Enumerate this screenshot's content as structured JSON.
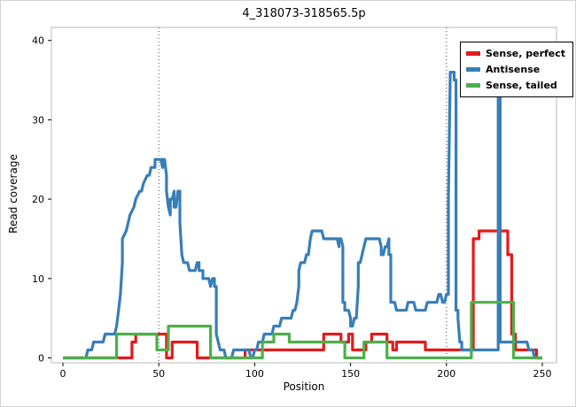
{
  "chart_data": {
    "type": "line",
    "step": true,
    "title": "4_318073-318565.5p",
    "xlabel": "Position",
    "ylabel": "Read coverage",
    "xlim": [
      0,
      250
    ],
    "ylim": [
      0,
      40
    ],
    "xticks": [
      0,
      50,
      100,
      150,
      200,
      250
    ],
    "yticks": [
      0,
      10,
      20,
      30,
      40
    ],
    "grid": false,
    "vlines_dotted": [
      50,
      200
    ],
    "legend_position": "top-right",
    "series": [
      {
        "name": "Sense, perfect",
        "color": "#e41a1c",
        "points": [
          [
            0,
            0
          ],
          [
            36,
            0
          ],
          [
            36,
            2
          ],
          [
            38,
            2
          ],
          [
            38,
            3
          ],
          [
            54,
            3
          ],
          [
            54,
            0
          ],
          [
            57,
            0
          ],
          [
            57,
            2
          ],
          [
            70,
            2
          ],
          [
            70,
            0
          ],
          [
            95,
            0
          ],
          [
            95,
            1
          ],
          [
            136,
            1
          ],
          [
            136,
            3
          ],
          [
            145,
            3
          ],
          [
            145,
            2
          ],
          [
            149,
            2
          ],
          [
            149,
            3
          ],
          [
            151,
            3
          ],
          [
            151,
            1
          ],
          [
            158,
            1
          ],
          [
            158,
            2
          ],
          [
            161,
            2
          ],
          [
            161,
            3
          ],
          [
            169,
            3
          ],
          [
            169,
            2
          ],
          [
            172,
            2
          ],
          [
            172,
            1
          ],
          [
            174,
            1
          ],
          [
            174,
            2
          ],
          [
            189,
            2
          ],
          [
            189,
            1
          ],
          [
            214,
            1
          ],
          [
            214,
            15
          ],
          [
            217,
            15
          ],
          [
            217,
            16
          ],
          [
            232,
            16
          ],
          [
            232,
            13
          ],
          [
            234,
            13
          ],
          [
            234,
            3
          ],
          [
            236,
            3
          ],
          [
            236,
            1
          ],
          [
            247,
            1
          ],
          [
            247,
            0
          ],
          [
            250,
            0
          ]
        ]
      },
      {
        "name": "Antisense",
        "color": "#377eb8",
        "points": [
          [
            0,
            0
          ],
          [
            12,
            0
          ],
          [
            13,
            1
          ],
          [
            15,
            1
          ],
          [
            16,
            2
          ],
          [
            21,
            2
          ],
          [
            22,
            3
          ],
          [
            27,
            3
          ],
          [
            28,
            4
          ],
          [
            29,
            6
          ],
          [
            30,
            8
          ],
          [
            31,
            12
          ],
          [
            31,
            15
          ],
          [
            33,
            16
          ],
          [
            34,
            17
          ],
          [
            35,
            18
          ],
          [
            37,
            19
          ],
          [
            38,
            20
          ],
          [
            40,
            21
          ],
          [
            41,
            21
          ],
          [
            42,
            22
          ],
          [
            44,
            23
          ],
          [
            45,
            23
          ],
          [
            46,
            24
          ],
          [
            48,
            24
          ],
          [
            48,
            25
          ],
          [
            51,
            25
          ],
          [
            52,
            24
          ],
          [
            52,
            25
          ],
          [
            53,
            25
          ],
          [
            54,
            23
          ],
          [
            54,
            21
          ],
          [
            55,
            19
          ],
          [
            56,
            18
          ],
          [
            56,
            20
          ],
          [
            57,
            20
          ],
          [
            58,
            21
          ],
          [
            58,
            19
          ],
          [
            59,
            19
          ],
          [
            60,
            21
          ],
          [
            61,
            21
          ],
          [
            61,
            17
          ],
          [
            62,
            13
          ],
          [
            63,
            12
          ],
          [
            65,
            12
          ],
          [
            66,
            11
          ],
          [
            69,
            11
          ],
          [
            70,
            12
          ],
          [
            71,
            12
          ],
          [
            71,
            11
          ],
          [
            73,
            11
          ],
          [
            73,
            10
          ],
          [
            76,
            10
          ],
          [
            77,
            9
          ],
          [
            78,
            10
          ],
          [
            79,
            10
          ],
          [
            79,
            9
          ],
          [
            80,
            9
          ],
          [
            80,
            3
          ],
          [
            81,
            2
          ],
          [
            82,
            1
          ],
          [
            84,
            1
          ],
          [
            85,
            0
          ],
          [
            88,
            0
          ],
          [
            89,
            1
          ],
          [
            97,
            1
          ],
          [
            98,
            0
          ],
          [
            99,
            0
          ],
          [
            100,
            1
          ],
          [
            101,
            1
          ],
          [
            102,
            2
          ],
          [
            104,
            2
          ],
          [
            105,
            3
          ],
          [
            109,
            3
          ],
          [
            110,
            4
          ],
          [
            113,
            4
          ],
          [
            114,
            5
          ],
          [
            119,
            5
          ],
          [
            120,
            6
          ],
          [
            121,
            6
          ],
          [
            122,
            7
          ],
          [
            123,
            9
          ],
          [
            123,
            11
          ],
          [
            124,
            12
          ],
          [
            126,
            12
          ],
          [
            127,
            13
          ],
          [
            128,
            13
          ],
          [
            129,
            15
          ],
          [
            130,
            16
          ],
          [
            135,
            16
          ],
          [
            136,
            15
          ],
          [
            143,
            15
          ],
          [
            144,
            14
          ],
          [
            144,
            15
          ],
          [
            145,
            15
          ],
          [
            146,
            14
          ],
          [
            146,
            7
          ],
          [
            147,
            7
          ],
          [
            147,
            6
          ],
          [
            149,
            6
          ],
          [
            150,
            5
          ],
          [
            150,
            4
          ],
          [
            151,
            4
          ],
          [
            152,
            5
          ],
          [
            153,
            5
          ],
          [
            154,
            9
          ],
          [
            154,
            12
          ],
          [
            155,
            12
          ],
          [
            156,
            13
          ],
          [
            157,
            14
          ],
          [
            158,
            15
          ],
          [
            165,
            15
          ],
          [
            166,
            14
          ],
          [
            166,
            13
          ],
          [
            167,
            13
          ],
          [
            168,
            14
          ],
          [
            169,
            14
          ],
          [
            170,
            15
          ],
          [
            170,
            13
          ],
          [
            171,
            13
          ],
          [
            171,
            7
          ],
          [
            173,
            7
          ],
          [
            174,
            6
          ],
          [
            179,
            6
          ],
          [
            180,
            7
          ],
          [
            183,
            7
          ],
          [
            184,
            6
          ],
          [
            189,
            6
          ],
          [
            190,
            7
          ],
          [
            195,
            7
          ],
          [
            196,
            8
          ],
          [
            197,
            8
          ],
          [
            198,
            7
          ],
          [
            199,
            7
          ],
          [
            200,
            8
          ],
          [
            201,
            8
          ],
          [
            201,
            20
          ],
          [
            202,
            36
          ],
          [
            204,
            36
          ],
          [
            204,
            35
          ],
          [
            205,
            35
          ],
          [
            205,
            6
          ],
          [
            206,
            6
          ],
          [
            206,
            5
          ],
          [
            207,
            2
          ],
          [
            208,
            2
          ],
          [
            208,
            1
          ],
          [
            226,
            1
          ],
          [
            227,
            1
          ],
          [
            227,
            36
          ],
          [
            228,
            36
          ],
          [
            228,
            2
          ],
          [
            242,
            2
          ],
          [
            243,
            1
          ],
          [
            245,
            1
          ],
          [
            246,
            0
          ],
          [
            250,
            0
          ]
        ]
      },
      {
        "name": "Sense, tailed",
        "color": "#4daf4a",
        "points": [
          [
            0,
            0
          ],
          [
            28,
            0
          ],
          [
            28,
            3
          ],
          [
            49,
            3
          ],
          [
            49,
            1
          ],
          [
            55,
            1
          ],
          [
            55,
            4
          ],
          [
            77,
            4
          ],
          [
            77,
            0
          ],
          [
            104,
            0
          ],
          [
            104,
            2
          ],
          [
            110,
            2
          ],
          [
            110,
            3
          ],
          [
            118,
            3
          ],
          [
            118,
            2
          ],
          [
            147,
            2
          ],
          [
            147,
            0
          ],
          [
            157,
            0
          ],
          [
            157,
            2
          ],
          [
            169,
            2
          ],
          [
            169,
            0
          ],
          [
            213,
            0
          ],
          [
            213,
            7
          ],
          [
            235,
            7
          ],
          [
            235,
            0
          ],
          [
            250,
            0
          ]
        ]
      }
    ]
  }
}
